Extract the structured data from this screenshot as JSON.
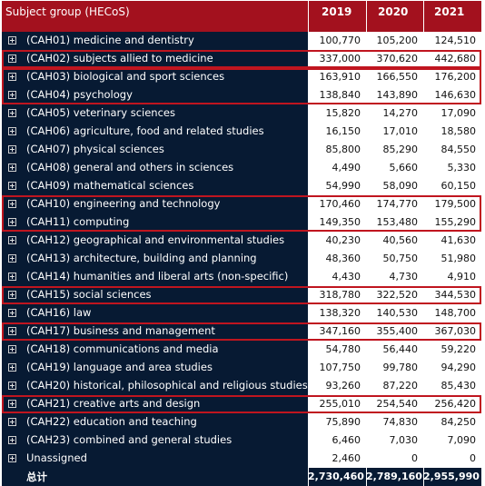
{
  "header": {
    "subject_label": "Subject group (HECoS)",
    "years": [
      "2019",
      "2020",
      "2021"
    ]
  },
  "rows": [
    {
      "label": "(CAH01) medicine and dentistry",
      "v": [
        "100,770",
        "105,200",
        "124,510"
      ]
    },
    {
      "label": "(CAH02) subjects allied to medicine",
      "v": [
        "337,000",
        "370,620",
        "442,680"
      ]
    },
    {
      "label": "(CAH03) biological and sport sciences",
      "v": [
        "163,910",
        "166,550",
        "176,200"
      ]
    },
    {
      "label": "(CAH04) psychology",
      "v": [
        "138,840",
        "143,890",
        "146,630"
      ]
    },
    {
      "label": "(CAH05) veterinary sciences",
      "v": [
        "15,820",
        "14,270",
        "17,090"
      ]
    },
    {
      "label": "(CAH06) agriculture, food and related studies",
      "v": [
        "16,150",
        "17,010",
        "18,580"
      ]
    },
    {
      "label": "(CAH07) physical sciences",
      "v": [
        "85,800",
        "85,290",
        "84,550"
      ]
    },
    {
      "label": "(CAH08) general and others in sciences",
      "v": [
        "4,490",
        "5,660",
        "5,330"
      ]
    },
    {
      "label": "(CAH09) mathematical sciences",
      "v": [
        "54,990",
        "58,090",
        "60,150"
      ]
    },
    {
      "label": "(CAH10) engineering and technology",
      "v": [
        "170,460",
        "174,770",
        "179,500"
      ]
    },
    {
      "label": "(CAH11) computing",
      "v": [
        "149,350",
        "153,480",
        "155,290"
      ]
    },
    {
      "label": "(CAH12) geographical and environmental studies",
      "v": [
        "40,230",
        "40,560",
        "41,630"
      ]
    },
    {
      "label": "(CAH13) architecture, building and planning",
      "v": [
        "48,360",
        "50,750",
        "51,980"
      ]
    },
    {
      "label": "(CAH14) humanities and liberal arts (non-specific)",
      "v": [
        "4,430",
        "4,730",
        "4,910"
      ]
    },
    {
      "label": "(CAH15) social sciences",
      "v": [
        "318,780",
        "322,520",
        "344,530"
      ]
    },
    {
      "label": "(CAH16) law",
      "v": [
        "138,320",
        "140,530",
        "148,700"
      ]
    },
    {
      "label": "(CAH17) business and management",
      "v": [
        "347,160",
        "355,400",
        "367,030"
      ]
    },
    {
      "label": "(CAH18) communications and media",
      "v": [
        "54,780",
        "56,440",
        "59,220"
      ]
    },
    {
      "label": "(CAH19) language and area studies",
      "v": [
        "107,750",
        "99,780",
        "94,290"
      ]
    },
    {
      "label": "(CAH20) historical, philosophical and religious studies",
      "v": [
        "93,260",
        "87,220",
        "85,430"
      ]
    },
    {
      "label": "(CAH21) creative arts and design",
      "v": [
        "255,010",
        "254,540",
        "256,420"
      ]
    },
    {
      "label": "(CAH22) education and teaching",
      "v": [
        "75,890",
        "74,830",
        "84,250"
      ]
    },
    {
      "label": "(CAH23) combined and general studies",
      "v": [
        "6,460",
        "7,030",
        "7,090"
      ]
    },
    {
      "label": "Unassigned",
      "v": [
        "2,460",
        "0",
        "0"
      ]
    }
  ],
  "total": {
    "label": "总计",
    "v": [
      "2,730,460",
      "2,789,160",
      "2,955,990"
    ]
  },
  "colors": {
    "header": "#a3111e",
    "label_bg": "#071a33",
    "highlight": "#c0151f"
  },
  "icons": {
    "expand": "plus-box-icon"
  }
}
